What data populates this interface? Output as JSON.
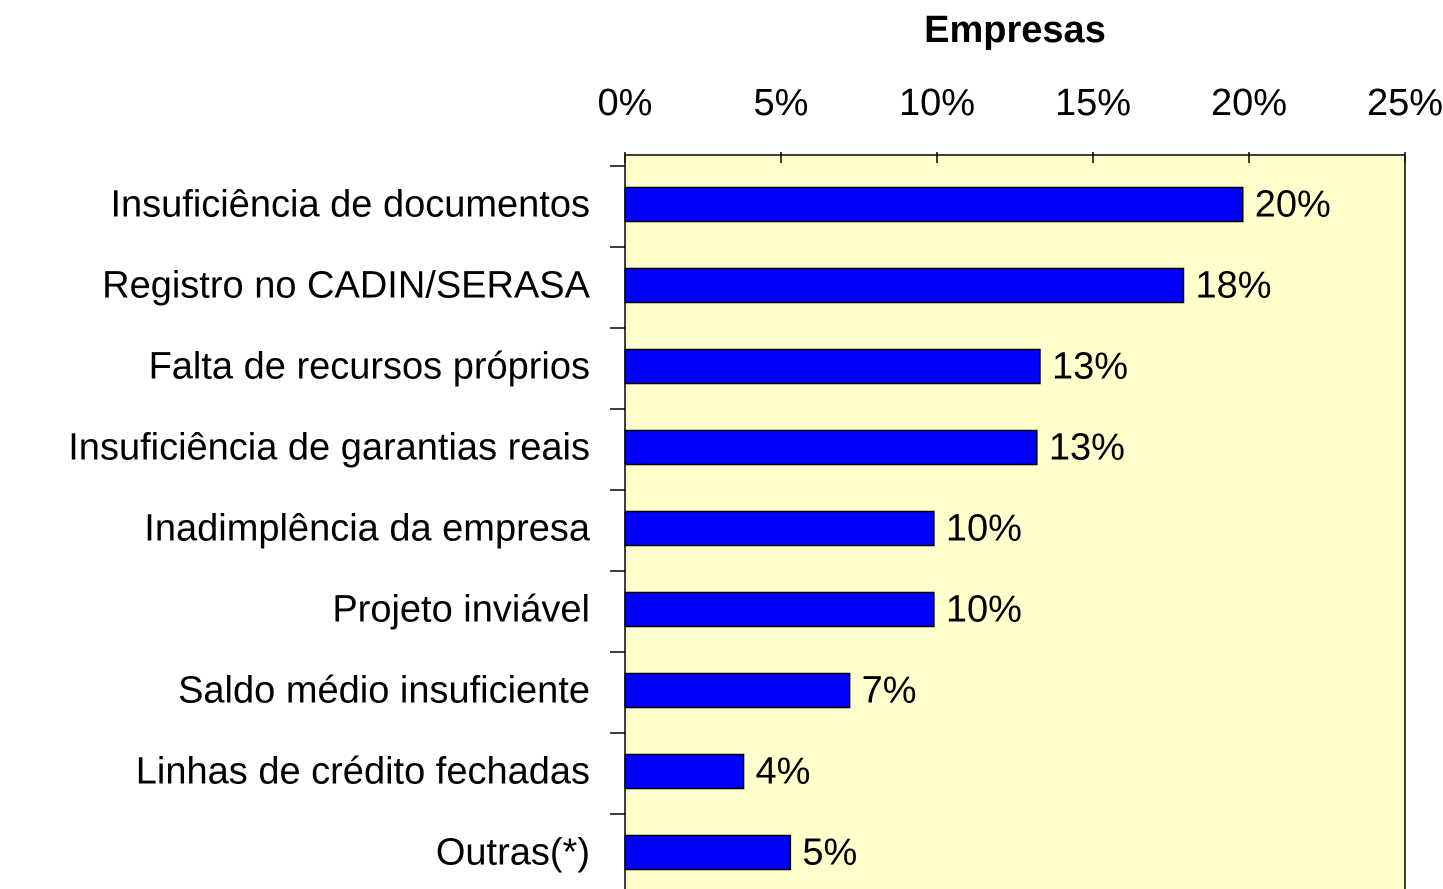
{
  "chart_data": {
    "type": "bar",
    "orientation": "horizontal",
    "title": "Empresas",
    "categories": [
      "Insuficiência de documentos",
      "Registro no CADIN/SERASA",
      "Falta de recursos próprios",
      "Insuficiência de garantias reais",
      "Inadimplência da empresa",
      "Projeto inviável",
      "Saldo médio insuficiente",
      "Linhas de crédito fechadas",
      "Outras(*)"
    ],
    "values": [
      19.8,
      17.9,
      13.3,
      13.2,
      9.9,
      9.9,
      7.2,
      3.8,
      5.3
    ],
    "value_labels": [
      "20%",
      "18%",
      "13%",
      "13%",
      "10%",
      "10%",
      "7%",
      "4%",
      "5%"
    ],
    "color": "#0000ff",
    "background": "#ffffcc",
    "xlim": [
      0,
      25
    ],
    "xticks": [
      {
        "value": 0,
        "label": "0%"
      },
      {
        "value": 5,
        "label": "5%"
      },
      {
        "value": 10,
        "label": "10%"
      },
      {
        "value": 15,
        "label": "15%"
      },
      {
        "value": 20,
        "label": "20%"
      },
      {
        "value": 25,
        "label": "25%"
      }
    ]
  }
}
